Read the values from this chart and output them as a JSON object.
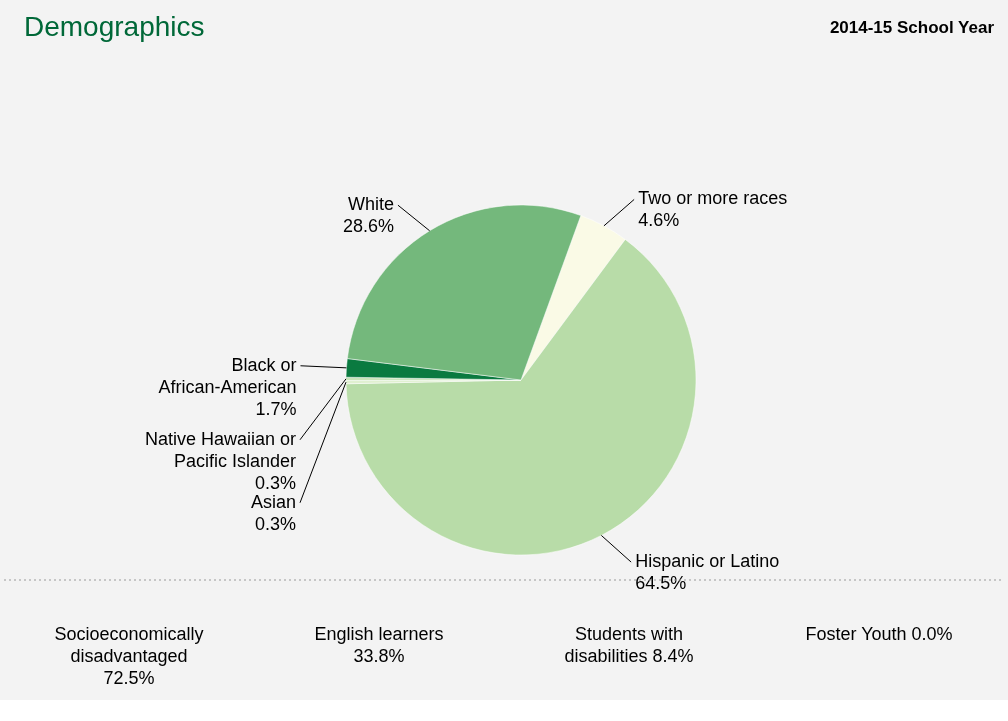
{
  "chart_data": {
    "type": "pie",
    "title": "Demographics",
    "subtitle": "2014-15 School Year",
    "categories": [
      "Two or more races",
      "Hispanic or Latino",
      "Asian",
      "Native Hawaiian or Pacific Islander",
      "Black or African-American",
      "White"
    ],
    "values": [
      4.6,
      64.5,
      0.3,
      0.3,
      1.7,
      28.6
    ],
    "value_labels": [
      "4.6%",
      "64.5%",
      "0.3%",
      "0.3%",
      "1.7%",
      "28.6%"
    ],
    "colors": [
      "#fafae6",
      "#b8dca8",
      "#e0f0d0",
      "#c8e4b8",
      "#0a7a40",
      "#74b87c"
    ],
    "legend": false,
    "annotations": [
      "Socioeconomically disadvantaged 72.5%",
      "English learners 33.8%",
      "Students with disabilities 8.4%",
      "Foster Youth 0.0%"
    ]
  }
}
